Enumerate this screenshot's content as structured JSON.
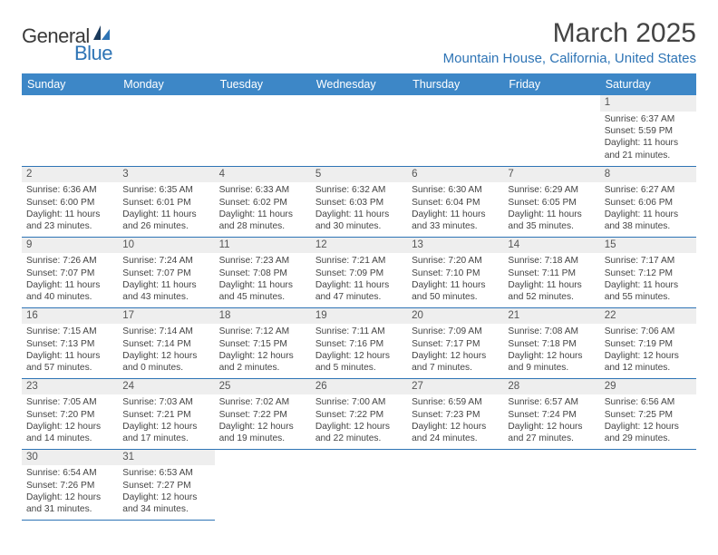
{
  "brand": {
    "text_general": "General",
    "text_blue": "Blue",
    "logo_color_dark": "#1a3a5c",
    "logo_color_blue": "#2e74b5"
  },
  "header": {
    "month_title": "March 2025",
    "location": "Mountain House, California, United States"
  },
  "styling": {
    "header_bg": "#3d87c7",
    "header_text": "#ffffff",
    "border_color": "#2e74b5",
    "daynum_bg": "#eeeeee",
    "daynum_color": "#555555",
    "body_color": "#444444",
    "page_bg": "#ffffff",
    "title_color": "#444444",
    "location_color": "#2e74b5",
    "header_font_size": 12.5,
    "title_font_size": 30,
    "location_font_size": 15,
    "body_font_size": 10.2
  },
  "day_headers": [
    "Sunday",
    "Monday",
    "Tuesday",
    "Wednesday",
    "Thursday",
    "Friday",
    "Saturday"
  ],
  "weeks": [
    [
      null,
      null,
      null,
      null,
      null,
      null,
      {
        "n": "1",
        "sr": "Sunrise: 6:37 AM",
        "ss": "Sunset: 5:59 PM",
        "dl": "Daylight: 11 hours and 21 minutes."
      }
    ],
    [
      {
        "n": "2",
        "sr": "Sunrise: 6:36 AM",
        "ss": "Sunset: 6:00 PM",
        "dl": "Daylight: 11 hours and 23 minutes."
      },
      {
        "n": "3",
        "sr": "Sunrise: 6:35 AM",
        "ss": "Sunset: 6:01 PM",
        "dl": "Daylight: 11 hours and 26 minutes."
      },
      {
        "n": "4",
        "sr": "Sunrise: 6:33 AM",
        "ss": "Sunset: 6:02 PM",
        "dl": "Daylight: 11 hours and 28 minutes."
      },
      {
        "n": "5",
        "sr": "Sunrise: 6:32 AM",
        "ss": "Sunset: 6:03 PM",
        "dl": "Daylight: 11 hours and 30 minutes."
      },
      {
        "n": "6",
        "sr": "Sunrise: 6:30 AM",
        "ss": "Sunset: 6:04 PM",
        "dl": "Daylight: 11 hours and 33 minutes."
      },
      {
        "n": "7",
        "sr": "Sunrise: 6:29 AM",
        "ss": "Sunset: 6:05 PM",
        "dl": "Daylight: 11 hours and 35 minutes."
      },
      {
        "n": "8",
        "sr": "Sunrise: 6:27 AM",
        "ss": "Sunset: 6:06 PM",
        "dl": "Daylight: 11 hours and 38 minutes."
      }
    ],
    [
      {
        "n": "9",
        "sr": "Sunrise: 7:26 AM",
        "ss": "Sunset: 7:07 PM",
        "dl": "Daylight: 11 hours and 40 minutes."
      },
      {
        "n": "10",
        "sr": "Sunrise: 7:24 AM",
        "ss": "Sunset: 7:07 PM",
        "dl": "Daylight: 11 hours and 43 minutes."
      },
      {
        "n": "11",
        "sr": "Sunrise: 7:23 AM",
        "ss": "Sunset: 7:08 PM",
        "dl": "Daylight: 11 hours and 45 minutes."
      },
      {
        "n": "12",
        "sr": "Sunrise: 7:21 AM",
        "ss": "Sunset: 7:09 PM",
        "dl": "Daylight: 11 hours and 47 minutes."
      },
      {
        "n": "13",
        "sr": "Sunrise: 7:20 AM",
        "ss": "Sunset: 7:10 PM",
        "dl": "Daylight: 11 hours and 50 minutes."
      },
      {
        "n": "14",
        "sr": "Sunrise: 7:18 AM",
        "ss": "Sunset: 7:11 PM",
        "dl": "Daylight: 11 hours and 52 minutes."
      },
      {
        "n": "15",
        "sr": "Sunrise: 7:17 AM",
        "ss": "Sunset: 7:12 PM",
        "dl": "Daylight: 11 hours and 55 minutes."
      }
    ],
    [
      {
        "n": "16",
        "sr": "Sunrise: 7:15 AM",
        "ss": "Sunset: 7:13 PM",
        "dl": "Daylight: 11 hours and 57 minutes."
      },
      {
        "n": "17",
        "sr": "Sunrise: 7:14 AM",
        "ss": "Sunset: 7:14 PM",
        "dl": "Daylight: 12 hours and 0 minutes."
      },
      {
        "n": "18",
        "sr": "Sunrise: 7:12 AM",
        "ss": "Sunset: 7:15 PM",
        "dl": "Daylight: 12 hours and 2 minutes."
      },
      {
        "n": "19",
        "sr": "Sunrise: 7:11 AM",
        "ss": "Sunset: 7:16 PM",
        "dl": "Daylight: 12 hours and 5 minutes."
      },
      {
        "n": "20",
        "sr": "Sunrise: 7:09 AM",
        "ss": "Sunset: 7:17 PM",
        "dl": "Daylight: 12 hours and 7 minutes."
      },
      {
        "n": "21",
        "sr": "Sunrise: 7:08 AM",
        "ss": "Sunset: 7:18 PM",
        "dl": "Daylight: 12 hours and 9 minutes."
      },
      {
        "n": "22",
        "sr": "Sunrise: 7:06 AM",
        "ss": "Sunset: 7:19 PM",
        "dl": "Daylight: 12 hours and 12 minutes."
      }
    ],
    [
      {
        "n": "23",
        "sr": "Sunrise: 7:05 AM",
        "ss": "Sunset: 7:20 PM",
        "dl": "Daylight: 12 hours and 14 minutes."
      },
      {
        "n": "24",
        "sr": "Sunrise: 7:03 AM",
        "ss": "Sunset: 7:21 PM",
        "dl": "Daylight: 12 hours and 17 minutes."
      },
      {
        "n": "25",
        "sr": "Sunrise: 7:02 AM",
        "ss": "Sunset: 7:22 PM",
        "dl": "Daylight: 12 hours and 19 minutes."
      },
      {
        "n": "26",
        "sr": "Sunrise: 7:00 AM",
        "ss": "Sunset: 7:22 PM",
        "dl": "Daylight: 12 hours and 22 minutes."
      },
      {
        "n": "27",
        "sr": "Sunrise: 6:59 AM",
        "ss": "Sunset: 7:23 PM",
        "dl": "Daylight: 12 hours and 24 minutes."
      },
      {
        "n": "28",
        "sr": "Sunrise: 6:57 AM",
        "ss": "Sunset: 7:24 PM",
        "dl": "Daylight: 12 hours and 27 minutes."
      },
      {
        "n": "29",
        "sr": "Sunrise: 6:56 AM",
        "ss": "Sunset: 7:25 PM",
        "dl": "Daylight: 12 hours and 29 minutes."
      }
    ],
    [
      {
        "n": "30",
        "sr": "Sunrise: 6:54 AM",
        "ss": "Sunset: 7:26 PM",
        "dl": "Daylight: 12 hours and 31 minutes."
      },
      {
        "n": "31",
        "sr": "Sunrise: 6:53 AM",
        "ss": "Sunset: 7:27 PM",
        "dl": "Daylight: 12 hours and 34 minutes."
      },
      null,
      null,
      null,
      null,
      null
    ]
  ]
}
